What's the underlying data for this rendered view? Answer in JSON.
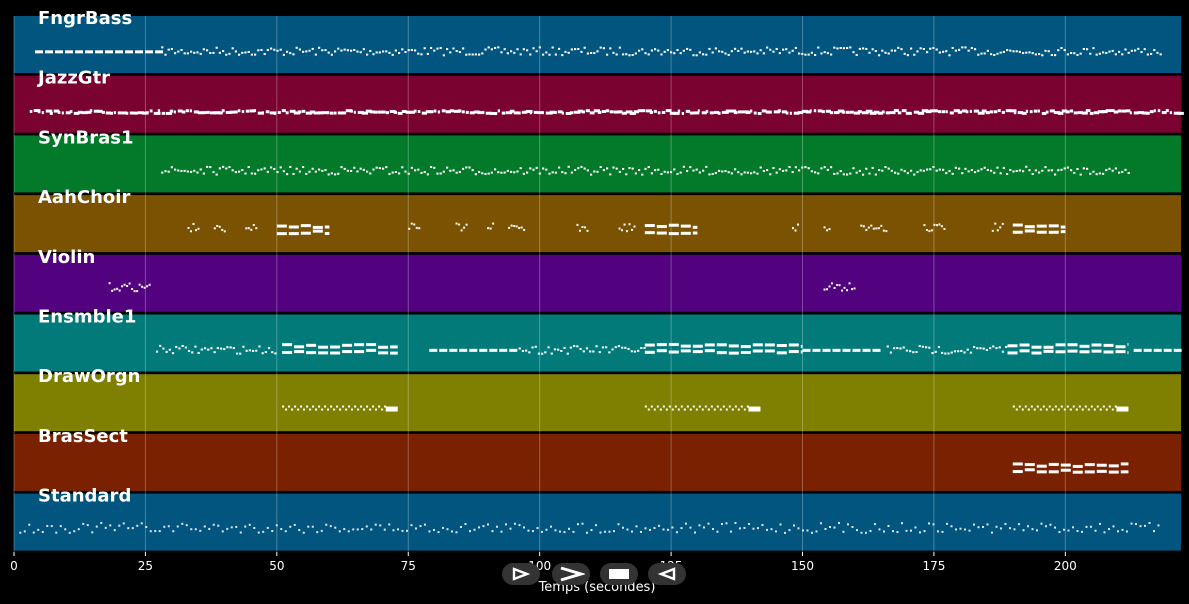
{
  "chart_data": {
    "type": "piano-roll",
    "xlabel": "Temps (secondes)",
    "x_ticks": [
      0,
      25,
      50,
      75,
      100,
      125,
      150,
      175,
      200
    ],
    "xlim": [
      0,
      222
    ],
    "grid": true,
    "tracks": [
      {
        "name": "FngrBass",
        "color": "#02557f",
        "segments": [
          [
            4,
            27,
            "long"
          ],
          [
            28,
            218,
            "dense"
          ]
        ]
      },
      {
        "name": "JazzGtr",
        "color": "#7a0230",
        "segments": [
          [
            3,
            222,
            "thick"
          ]
        ]
      },
      {
        "name": "SynBras1",
        "color": "#027a2a",
        "segments": [
          [
            28,
            212,
            "dense"
          ]
        ]
      },
      {
        "name": "AahChoir",
        "color": "#7a5202",
        "segments": [
          [
            33,
            35,
            "sparse"
          ],
          [
            38,
            40,
            "sparse"
          ],
          [
            44,
            46,
            "sparse"
          ],
          [
            50,
            60,
            "block"
          ],
          [
            75,
            77,
            "sparse"
          ],
          [
            84,
            86,
            "sparse"
          ],
          [
            90,
            91,
            "sparse"
          ],
          [
            94,
            97,
            "sparse"
          ],
          [
            107,
            109,
            "sparse"
          ],
          [
            115,
            118,
            "sparse"
          ],
          [
            120,
            130,
            "block"
          ],
          [
            148,
            149,
            "sparse"
          ],
          [
            154,
            155,
            "sparse"
          ],
          [
            161,
            166,
            "sparse"
          ],
          [
            173,
            177,
            "sparse"
          ],
          [
            186,
            188,
            "sparse"
          ],
          [
            190,
            200,
            "block"
          ]
        ]
      },
      {
        "name": "Violin",
        "color": "#52027f",
        "segments": [
          [
            18,
            26,
            "sparse"
          ],
          [
            154,
            160,
            "sparse"
          ]
        ]
      },
      {
        "name": "Ensmble1",
        "color": "#027a7a",
        "segments": [
          [
            27,
            50,
            "dense"
          ],
          [
            51,
            73,
            "block"
          ],
          [
            79,
            95,
            "long"
          ],
          [
            96,
            120,
            "dense"
          ],
          [
            120,
            150,
            "block"
          ],
          [
            150,
            165,
            "long"
          ],
          [
            166,
            189,
            "dense"
          ],
          [
            189,
            212,
            "block"
          ],
          [
            213,
            222,
            "long"
          ]
        ]
      },
      {
        "name": "DrawOrgn",
        "color": "#7f7f02",
        "segments": [
          [
            51,
            73,
            "trill"
          ],
          [
            120,
            142,
            "trill"
          ],
          [
            190,
            212,
            "trill"
          ]
        ]
      },
      {
        "name": "BrasSect",
        "color": "#7a2102",
        "segments": [
          [
            190,
            212,
            "block"
          ]
        ]
      },
      {
        "name": "Standard",
        "color": "#02557f",
        "segments": [
          [
            1,
            72,
            "drums"
          ],
          [
            72,
            218,
            "drums"
          ]
        ]
      }
    ]
  }
}
